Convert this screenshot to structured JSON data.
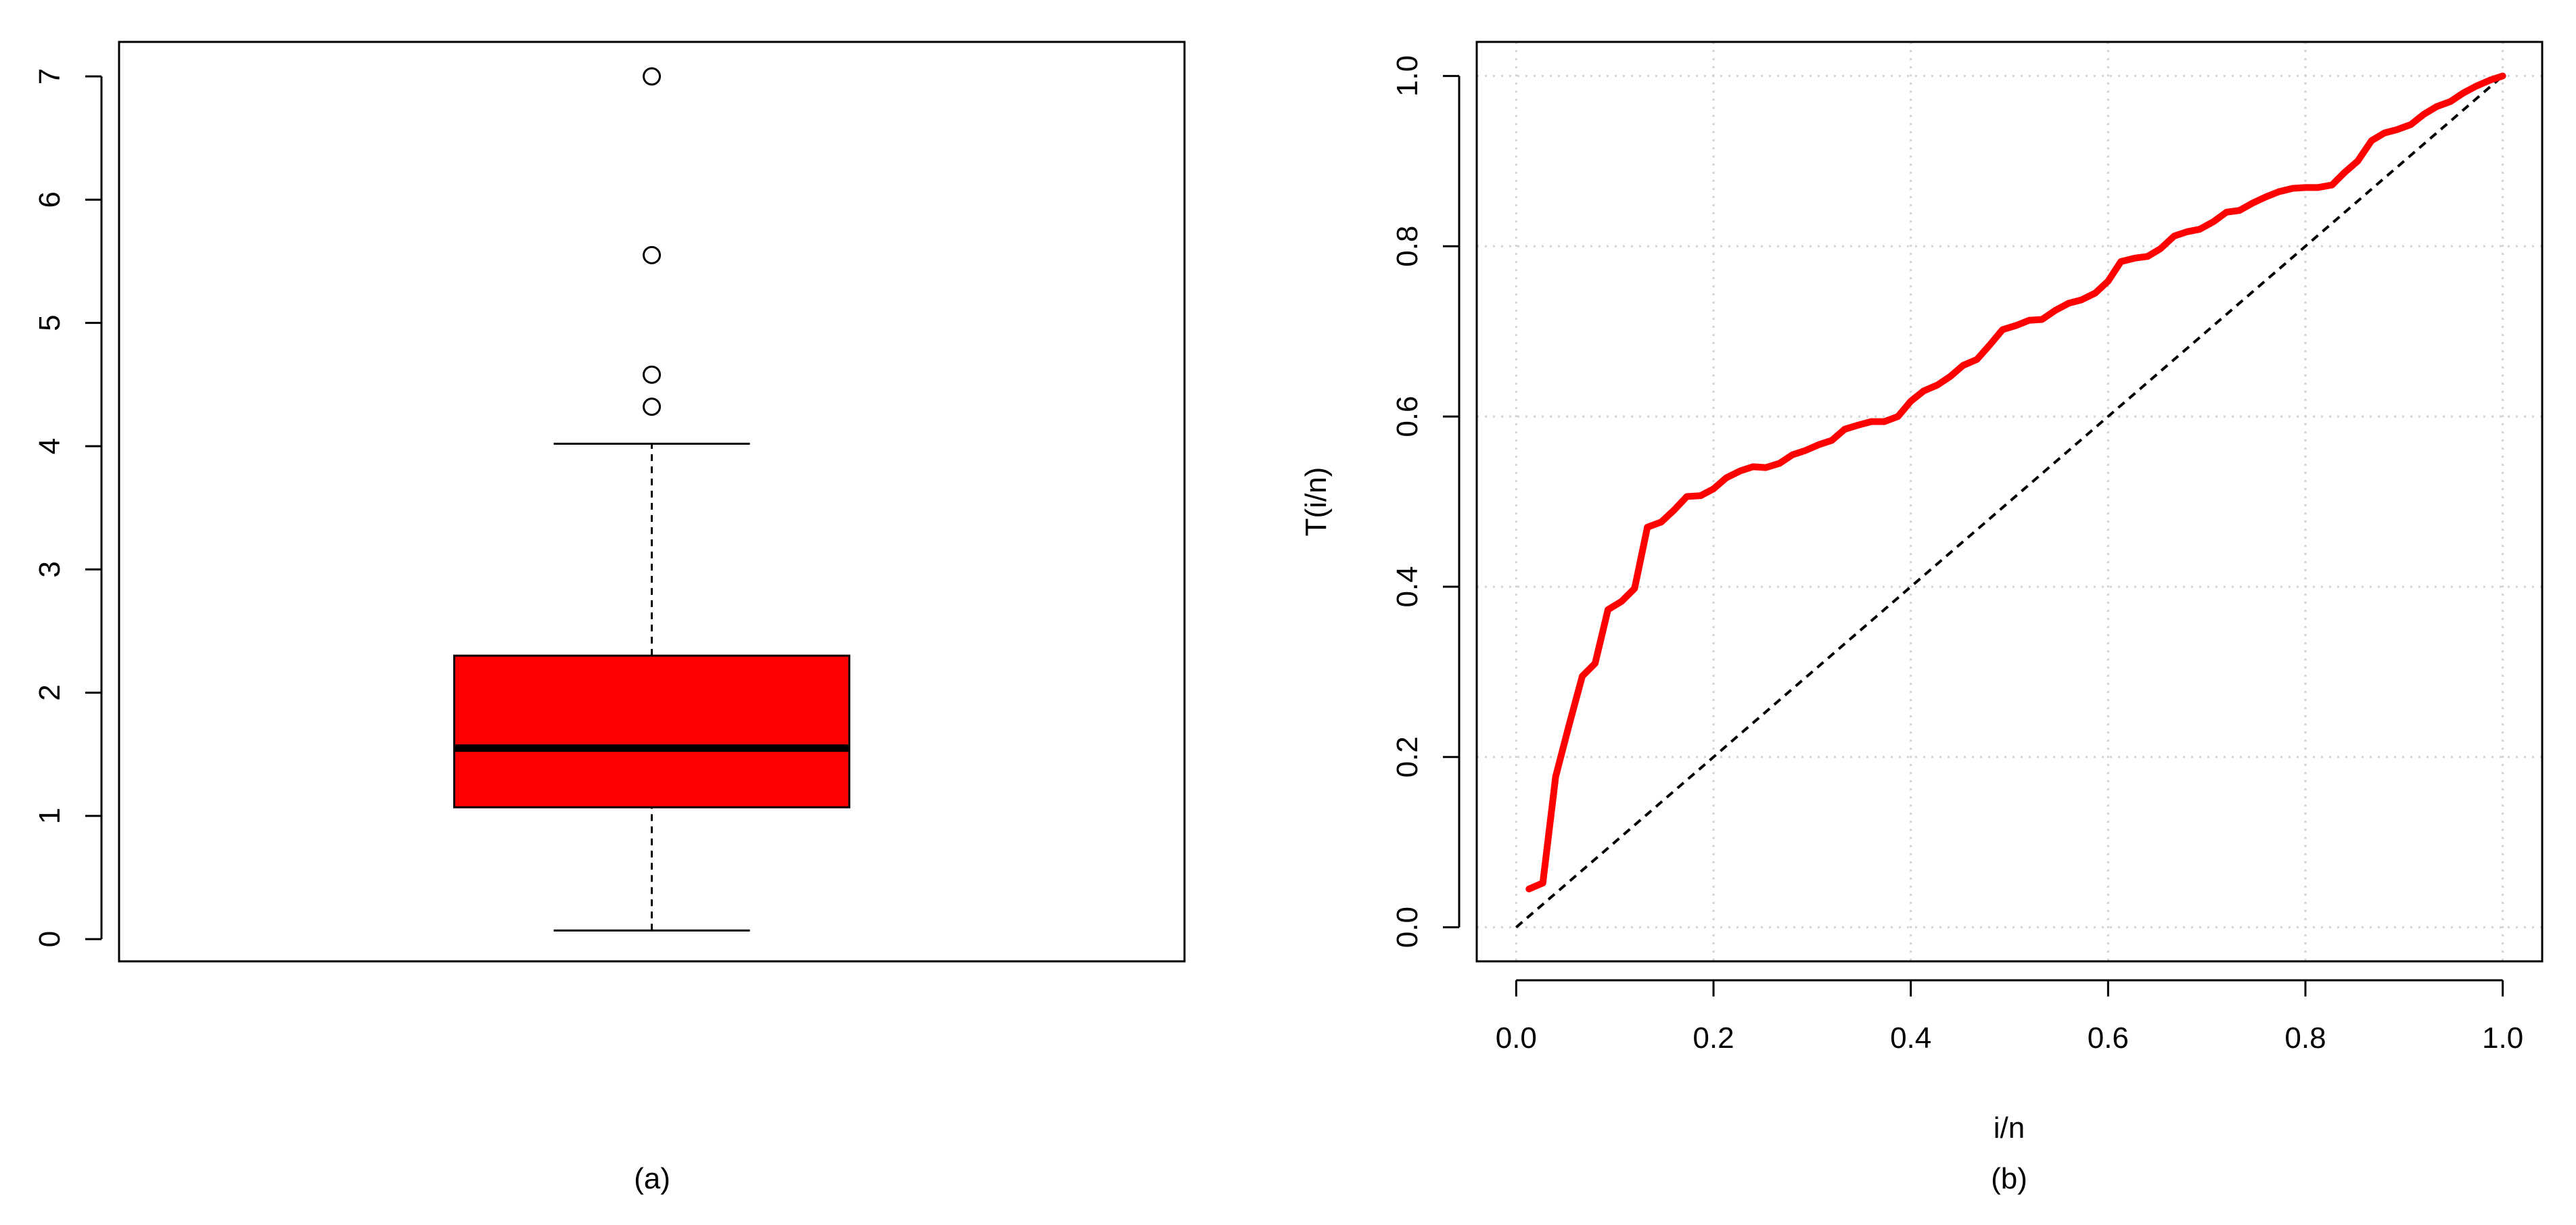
{
  "chart_data": [
    {
      "type": "box",
      "caption": "(a)",
      "xlabel": "",
      "ylabel": "",
      "ylim": [
        -0.18,
        7.28
      ],
      "yticks": [
        0,
        1,
        2,
        3,
        4,
        5,
        6,
        7
      ],
      "ytick_labels": [
        "0",
        "1",
        "2",
        "3",
        "4",
        "5",
        "6",
        "7"
      ],
      "grid": false,
      "box": {
        "whisker_low": 0.07,
        "q1": 1.07,
        "median": 1.55,
        "q3": 2.3,
        "whisker_high": 4.02,
        "fill": "#ff0000"
      },
      "outliers": [
        4.32,
        4.58,
        5.55,
        7.0
      ]
    },
    {
      "type": "line",
      "caption": "(b)",
      "xlabel": "i/n",
      "ylabel": "T(i/n)",
      "xlim": [
        -0.04,
        1.04
      ],
      "ylim": [
        -0.04,
        1.04
      ],
      "xticks": [
        0.0,
        0.2,
        0.4,
        0.6,
        0.8,
        1.0
      ],
      "xtick_labels": [
        "0.0",
        "0.2",
        "0.4",
        "0.6",
        "0.8",
        "1.0"
      ],
      "yticks": [
        0.0,
        0.2,
        0.4,
        0.6,
        0.8,
        1.0
      ],
      "ytick_labels": [
        "0.0",
        "0.2",
        "0.4",
        "0.6",
        "0.8",
        "1.0"
      ],
      "grid": true,
      "series": [
        {
          "style": "solid",
          "color": "#ff0000",
          "points": [
            [
              0.013,
              0.045
            ],
            [
              0.027,
              0.052
            ],
            [
              0.04,
              0.177
            ],
            [
              0.053,
              0.235
            ],
            [
              0.067,
              0.295
            ],
            [
              0.08,
              0.31
            ],
            [
              0.093,
              0.373
            ],
            [
              0.107,
              0.383
            ],
            [
              0.12,
              0.398
            ],
            [
              0.133,
              0.47
            ],
            [
              0.147,
              0.476
            ],
            [
              0.16,
              0.49
            ],
            [
              0.173,
              0.506
            ],
            [
              0.187,
              0.507
            ],
            [
              0.2,
              0.515
            ],
            [
              0.213,
              0.528
            ],
            [
              0.227,
              0.536
            ],
            [
              0.24,
              0.541
            ],
            [
              0.253,
              0.54
            ],
            [
              0.267,
              0.545
            ],
            [
              0.28,
              0.555
            ],
            [
              0.293,
              0.56
            ],
            [
              0.307,
              0.567
            ],
            [
              0.32,
              0.572
            ],
            [
              0.333,
              0.585
            ],
            [
              0.347,
              0.59
            ],
            [
              0.36,
              0.594
            ],
            [
              0.373,
              0.594
            ],
            [
              0.387,
              0.6
            ],
            [
              0.4,
              0.618
            ],
            [
              0.413,
              0.63
            ],
            [
              0.427,
              0.637
            ],
            [
              0.44,
              0.647
            ],
            [
              0.453,
              0.66
            ],
            [
              0.467,
              0.667
            ],
            [
              0.48,
              0.684
            ],
            [
              0.493,
              0.702
            ],
            [
              0.507,
              0.707
            ],
            [
              0.52,
              0.713
            ],
            [
              0.533,
              0.714
            ],
            [
              0.547,
              0.725
            ],
            [
              0.56,
              0.733
            ],
            [
              0.573,
              0.737
            ],
            [
              0.587,
              0.745
            ],
            [
              0.6,
              0.759
            ],
            [
              0.613,
              0.782
            ],
            [
              0.627,
              0.786
            ],
            [
              0.64,
              0.788
            ],
            [
              0.653,
              0.797
            ],
            [
              0.667,
              0.812
            ],
            [
              0.68,
              0.817
            ],
            [
              0.693,
              0.82
            ],
            [
              0.707,
              0.829
            ],
            [
              0.72,
              0.84
            ],
            [
              0.733,
              0.842
            ],
            [
              0.747,
              0.851
            ],
            [
              0.76,
              0.858
            ],
            [
              0.773,
              0.864
            ],
            [
              0.787,
              0.868
            ],
            [
              0.8,
              0.869
            ],
            [
              0.813,
              0.869
            ],
            [
              0.827,
              0.872
            ],
            [
              0.84,
              0.887
            ],
            [
              0.853,
              0.9
            ],
            [
              0.867,
              0.924
            ],
            [
              0.88,
              0.933
            ],
            [
              0.893,
              0.937
            ],
            [
              0.907,
              0.943
            ],
            [
              0.92,
              0.955
            ],
            [
              0.933,
              0.964
            ],
            [
              0.947,
              0.97
            ],
            [
              0.96,
              0.98
            ],
            [
              0.973,
              0.988
            ],
            [
              0.987,
              0.995
            ],
            [
              1.0,
              1.0
            ]
          ]
        },
        {
          "style": "dashed",
          "color": "#000000",
          "points": [
            [
              0,
              0
            ],
            [
              1,
              1
            ]
          ]
        }
      ]
    }
  ]
}
